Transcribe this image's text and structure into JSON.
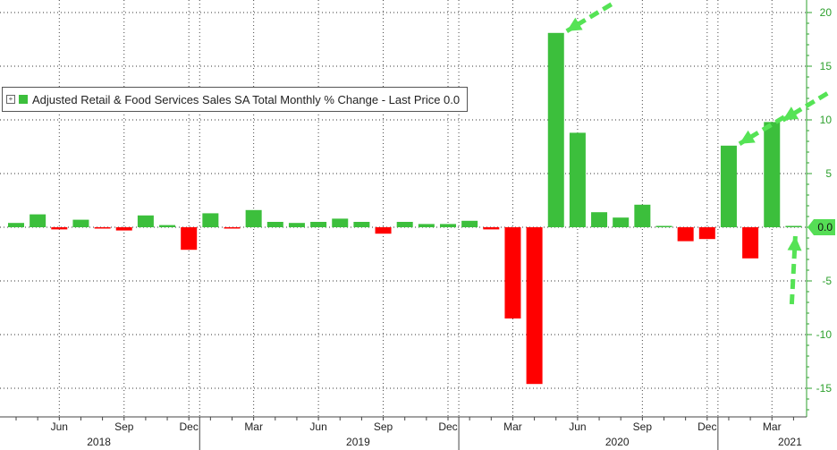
{
  "chart_data": {
    "type": "bar",
    "title": "",
    "xlabel": "",
    "ylabel": "",
    "ylim": [
      -18,
      20
    ],
    "y_ticks": [
      -15,
      -10,
      -5,
      0,
      5,
      10,
      15,
      20
    ],
    "grid": true,
    "legend_position": "top-left",
    "last_price_label": "0.0",
    "colors": {
      "positive": "#3cbf3c",
      "negative": "#ff0000",
      "axis": "#2ca02c",
      "arrow": "#55e355",
      "last_box": "#55dd55"
    },
    "series": [
      {
        "name": "Adjusted Retail & Food Services Sales SA Total Monthly % Change - Last Price 0.0",
        "categories": [
          "2018-04",
          "2018-05",
          "2018-06",
          "2018-07",
          "2018-08",
          "2018-09",
          "2018-10",
          "2018-11",
          "2018-12",
          "2019-01",
          "2019-02",
          "2019-03",
          "2019-04",
          "2019-05",
          "2019-06",
          "2019-07",
          "2019-08",
          "2019-09",
          "2019-10",
          "2019-11",
          "2019-12",
          "2020-01",
          "2020-02",
          "2020-03",
          "2020-04",
          "2020-05",
          "2020-06",
          "2020-07",
          "2020-08",
          "2020-09",
          "2020-10",
          "2020-11",
          "2020-12",
          "2021-01",
          "2021-02",
          "2021-03",
          "2021-04"
        ],
        "values": [
          0.4,
          1.2,
          -0.2,
          0.7,
          -0.1,
          -0.3,
          1.1,
          0.2,
          -2.1,
          1.3,
          -0.1,
          1.6,
          0.5,
          0.4,
          0.5,
          0.8,
          0.5,
          -0.6,
          0.5,
          0.3,
          0.3,
          0.6,
          -0.2,
          -8.5,
          -14.6,
          18.1,
          8.8,
          1.4,
          0.9,
          2.1,
          0.1,
          -1.3,
          -1.1,
          7.6,
          -2.9,
          9.8,
          0.0
        ]
      }
    ],
    "x_month_labels": [
      {
        "label": "Jun",
        "index": 2
      },
      {
        "label": "Sep",
        "index": 5
      },
      {
        "label": "Dec",
        "index": 8
      },
      {
        "label": "Mar",
        "index": 11
      },
      {
        "label": "Jun",
        "index": 14
      },
      {
        "label": "Sep",
        "index": 17
      },
      {
        "label": "Dec",
        "index": 20
      },
      {
        "label": "Mar",
        "index": 23
      },
      {
        "label": "Jun",
        "index": 26
      },
      {
        "label": "Sep",
        "index": 29
      },
      {
        "label": "Dec",
        "index": 32
      },
      {
        "label": "Mar",
        "index": 35
      }
    ],
    "x_year_labels": [
      {
        "label": "2018",
        "index": 4
      },
      {
        "label": "2019",
        "index": 16
      },
      {
        "label": "2020",
        "index": 28
      },
      {
        "label": "2021",
        "index": 36
      }
    ],
    "arrows": [
      {
        "target_index": 25,
        "target_value": 18.1,
        "from": "upper-right"
      },
      {
        "target_index": 33,
        "target_value": 7.6,
        "from": "upper-right"
      },
      {
        "target_index": 35,
        "target_value": 9.8,
        "from": "upper-right"
      },
      {
        "target_index": 36,
        "target_value": 0.0,
        "from": "below"
      }
    ]
  },
  "legend": {
    "toggle": "+",
    "text": "Adjusted Retail & Food Services Sales SA Total Monthly % Change - Last Price 0.0"
  }
}
